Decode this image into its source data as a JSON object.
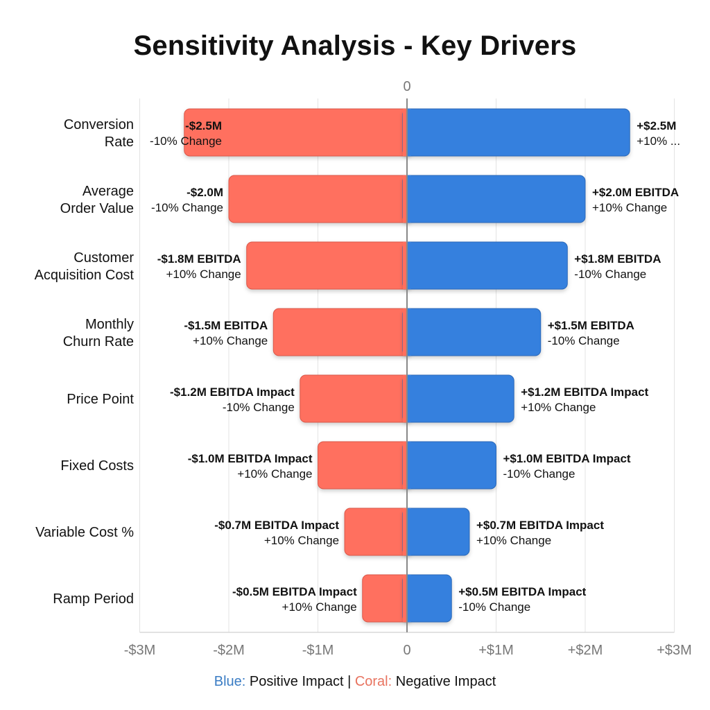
{
  "chart_data": {
    "type": "bar",
    "orientation": "horizontal-tornado",
    "title": "Sensitivity Analysis - Key Drivers",
    "top_axis_label": "0",
    "categories": [
      [
        "Conversion",
        "Rate"
      ],
      [
        "Average",
        "Order Value"
      ],
      [
        "Customer",
        "Acquisition Cost"
      ],
      [
        "Monthly",
        "Churn Rate"
      ],
      [
        "Price Point"
      ],
      [
        "Fixed Costs"
      ],
      [
        "Variable Cost %"
      ],
      [
        "Ramp Period"
      ]
    ],
    "series": [
      {
        "name": "Negative Impact",
        "color": "#FF6F5E",
        "values": [
          -2.5,
          -2.0,
          -1.8,
          -1.5,
          -1.2,
          -1.0,
          -0.7,
          -0.5
        ],
        "labels": [
          "-$2.5M",
          "-$2.0M",
          "-$1.8M EBITDA",
          "-$1.5M EBITDA",
          "-$1.2M EBITDA Impact",
          "-$1.0M EBITDA Impact",
          "-$0.7M EBITDA Impact",
          "-$0.5M EBITDA Impact"
        ],
        "sublabels": [
          "-10% Change",
          "-10% Change",
          "+10% Change",
          "+10% Change",
          "-10% Change",
          "+10% Change",
          "+10% Change",
          "+10% Change"
        ]
      },
      {
        "name": "Positive Impact",
        "color": "#3580DE",
        "values": [
          2.5,
          2.0,
          1.8,
          1.5,
          1.2,
          1.0,
          0.7,
          0.5
        ],
        "labels": [
          "+$2.5M",
          "+$2.0M EBITDA",
          "+$1.8M EBITDA",
          "+$1.5M EBITDA",
          "+$1.2M EBITDA Impact",
          "+$1.0M EBITDA Impact",
          "+$0.7M EBITDA Impact",
          "+$0.5M EBITDA Impact"
        ],
        "sublabels": [
          "+10% ...",
          "+10% Change",
          "-10% Change",
          "-10% Change",
          "+10% Change",
          "-10% Change",
          "+10% Change",
          "-10% Change"
        ]
      }
    ],
    "xlim": [
      -3,
      3
    ],
    "xticks": [
      -3,
      -2,
      -1,
      0,
      1,
      2,
      3
    ],
    "xtick_labels": [
      "-$3M",
      "-$2M",
      "-$1M",
      "0",
      "+$1M",
      "+$2M",
      "+$3M"
    ],
    "grid": true,
    "legend": {
      "position": "bottom",
      "blue_key": "Blue:",
      "blue_text": "Positive Impact",
      "separator": "|",
      "coral_key": "Coral:",
      "coral_text": "Negative Impact",
      "blue_color": "#3A7CC4",
      "coral_color": "#E8735F"
    }
  }
}
